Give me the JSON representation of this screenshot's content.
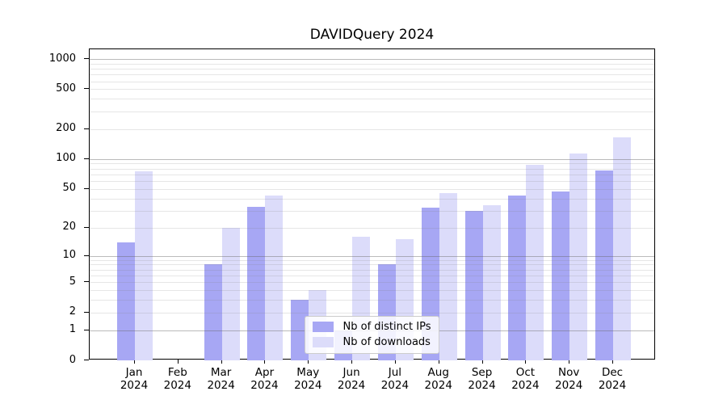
{
  "chart_data": {
    "type": "bar",
    "title": "DAVIDQuery 2024",
    "categories": [
      "Jan",
      "Feb",
      "Mar",
      "Apr",
      "May",
      "Jun",
      "Jul",
      "Aug",
      "Sep",
      "Oct",
      "Nov",
      "Dec"
    ],
    "x_tick_year": "2024",
    "series": [
      {
        "name": "Nb of distinct IPs",
        "color": "#a7a7f4",
        "values": [
          14,
          0,
          8,
          33,
          3,
          1,
          8,
          32,
          30,
          43,
          47,
          77
        ]
      },
      {
        "name": "Nb of downloads",
        "color": "#dcdcfa",
        "values": [
          76,
          0,
          20,
          43,
          4,
          16,
          15,
          45,
          34,
          88,
          114,
          166
        ]
      }
    ],
    "y_scale": "log1p",
    "ylim": [
      0,
      1250
    ],
    "y_tick_labels": [
      0,
      1,
      2,
      5,
      10,
      20,
      50,
      100,
      200,
      500,
      1000
    ],
    "y_major_gridlines": [
      1,
      10,
      100,
      1000
    ],
    "y_minor_gridlines": [
      2,
      3,
      4,
      5,
      6,
      7,
      8,
      9,
      20,
      30,
      40,
      50,
      60,
      70,
      80,
      90,
      200,
      300,
      400,
      500,
      600,
      700,
      800,
      900
    ],
    "grid": true,
    "legend_position": "lower center"
  }
}
